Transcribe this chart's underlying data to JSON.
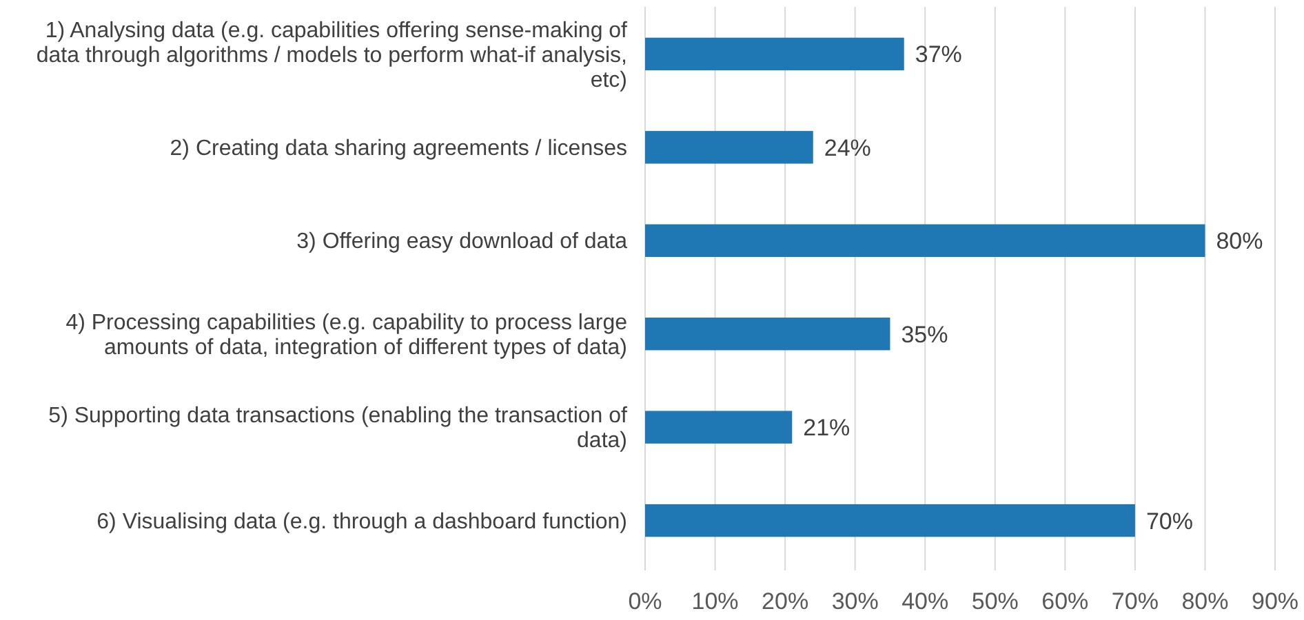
{
  "chart_data": {
    "type": "bar",
    "orientation": "horizontal",
    "categories": [
      "1) Analysing data (e.g. capabilities offering sense-making of data through algorithms / models to perform what-if analysis, etc)",
      "2) Creating data sharing agreements / licenses",
      "3) Offering easy download of data",
      "4) Processing capabilities (e.g. capability to process large amounts of data, integration of different types of data)",
      "5) Supporting data transactions (enabling the transaction of data)",
      "6) Visualising data (e.g. through a dashboard function)"
    ],
    "values": [
      37,
      24,
      80,
      35,
      21,
      70
    ],
    "value_labels": [
      "37%",
      "24%",
      "80%",
      "35%",
      "21%",
      "70%"
    ],
    "color": "#1f77b4",
    "xlim": [
      0,
      90
    ],
    "xticks": [
      {
        "value": 0,
        "label": "0%"
      },
      {
        "value": 10,
        "label": "10%"
      },
      {
        "value": 20,
        "label": "20%"
      },
      {
        "value": 30,
        "label": "30%"
      },
      {
        "value": 40,
        "label": "40%"
      },
      {
        "value": 50,
        "label": "50%"
      },
      {
        "value": 60,
        "label": "60%"
      },
      {
        "value": 70,
        "label": "70%"
      },
      {
        "value": 80,
        "label": "80%"
      },
      {
        "value": 90,
        "label": "90%"
      }
    ],
    "grid": "x"
  }
}
